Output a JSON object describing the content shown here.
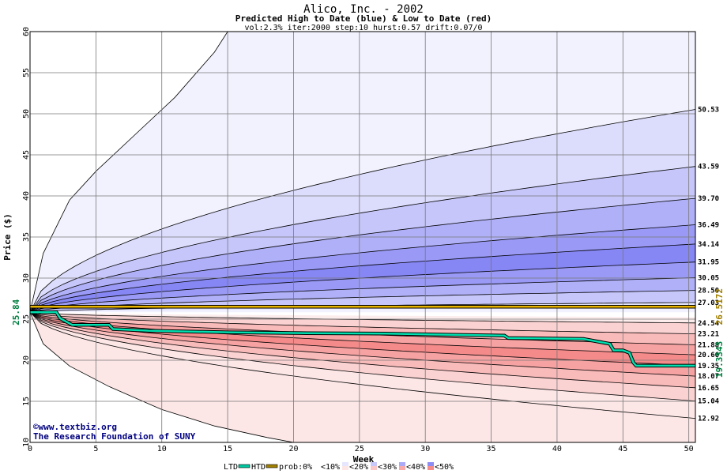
{
  "chart_data": {
    "type": "area",
    "title": "Alico, Inc. - 2002",
    "subtitle": "Predicted High to Date (blue) &  Low to Date (red)",
    "params": "vol:2.3% iter:2000 step:10 hurst:0.57 drift:0.07/0",
    "xlabel": "Week",
    "ylabel": "Price ($)",
    "xlim": [
      0,
      50.5
    ],
    "ylim": [
      10,
      60
    ],
    "x_ticks": [
      0,
      5,
      10,
      15,
      20,
      25,
      30,
      35,
      40,
      45,
      50
    ],
    "y_ticks": [
      10,
      15,
      20,
      25,
      30,
      35,
      40,
      45,
      50,
      55,
      60
    ],
    "grid": true,
    "start_price": 25.84,
    "start_label": "25.84",
    "right_labels": [
      "50.53",
      "43.59",
      "39.70",
      "36.49",
      "34.14",
      "31.95",
      "30.05",
      "28.50",
      "27.03",
      "24.54",
      "23.21",
      "21.88",
      "20.66",
      "19.35",
      "18.07",
      "16.65",
      "15.04",
      "12.92"
    ],
    "high_bands": {
      "end_values": [
        60,
        50.53,
        43.59,
        39.7,
        36.49,
        34.14,
        31.95,
        30.05,
        28.5,
        27.03
      ],
      "colors": [
        "#f2f2ff",
        "#dcdcfc",
        "#c6c6fa",
        "#b0b0f8",
        "#9a9af6",
        "#8686f4",
        "#9a9af6",
        "#b0b0f8",
        "#c6c6fa",
        "#e2e2fd"
      ],
      "extreme_curve": {
        "x": [
          0,
          1,
          3,
          5,
          8,
          11,
          14,
          15
        ],
        "y": [
          25.84,
          33,
          39.5,
          43,
          47.5,
          52,
          57.5,
          60
        ]
      }
    },
    "low_bands": {
      "end_values": [
        24.54,
        23.21,
        21.88,
        20.66,
        19.35,
        18.07,
        16.65,
        15.04,
        12.92,
        10
      ],
      "colors": [
        "#fdecec",
        "#fbd2d2",
        "#f9baba",
        "#f6a2a2",
        "#f48a8a",
        "#f6a2a2",
        "#f9baba",
        "#fbd2d2",
        "#fce6e6",
        "#fff4f4"
      ],
      "extreme_curve": {
        "x": [
          0,
          1,
          3,
          6,
          10,
          14,
          18,
          20
        ],
        "y": [
          25.84,
          22,
          19.3,
          16.8,
          14,
          12,
          10.6,
          10
        ]
      }
    },
    "htd_line": {
      "name": "HTD",
      "color": "#a08000",
      "x": [
        0,
        50.5
      ],
      "y": [
        26.5172,
        26.5172
      ],
      "label": "26.5172"
    },
    "ltd_line": {
      "name": "LTD",
      "color": "#00c8a0",
      "x": [
        0,
        2,
        2.3,
        3.2,
        6,
        6.3,
        9,
        15,
        21,
        27,
        32,
        36,
        36.3,
        42,
        44,
        44.3,
        45,
        45.5,
        45.8,
        46,
        50.5
      ],
      "y": [
        25.84,
        25.84,
        25.1,
        24.3,
        24.3,
        23.8,
        23.6,
        23.4,
        23.3,
        23.25,
        23.1,
        23.0,
        22.7,
        22.6,
        22.0,
        21.2,
        21.2,
        20.9,
        19.7,
        19.3343,
        19.3343
      ],
      "label": "19.3343"
    },
    "credits": [
      "©www.textbiz.org",
      "The Research Foundation of SUNY"
    ],
    "legend": {
      "placement": "bottom",
      "items": [
        {
          "label": "LTD",
          "type": "line",
          "color": "#00c8a0"
        },
        {
          "label": "HTD",
          "type": "line",
          "color": "#a08000"
        },
        {
          "label": "prob:0%",
          "type": "text"
        },
        {
          "label": "<10%",
          "type": "swatch",
          "colors": [
            "#ffffff",
            "#ffffff"
          ]
        },
        {
          "label": "<20%",
          "type": "swatch",
          "colors": [
            "#e6e6fd",
            "#fde6e6"
          ]
        },
        {
          "label": "<30%",
          "type": "swatch",
          "colors": [
            "#c8c8fa",
            "#fac8c8"
          ]
        },
        {
          "label": "<40%",
          "type": "swatch",
          "colors": [
            "#aaaaf8",
            "#f8aaaa"
          ]
        },
        {
          "label": "<50%",
          "type": "swatch",
          "colors": [
            "#8c8cf4",
            "#f48c8c"
          ]
        }
      ]
    }
  }
}
